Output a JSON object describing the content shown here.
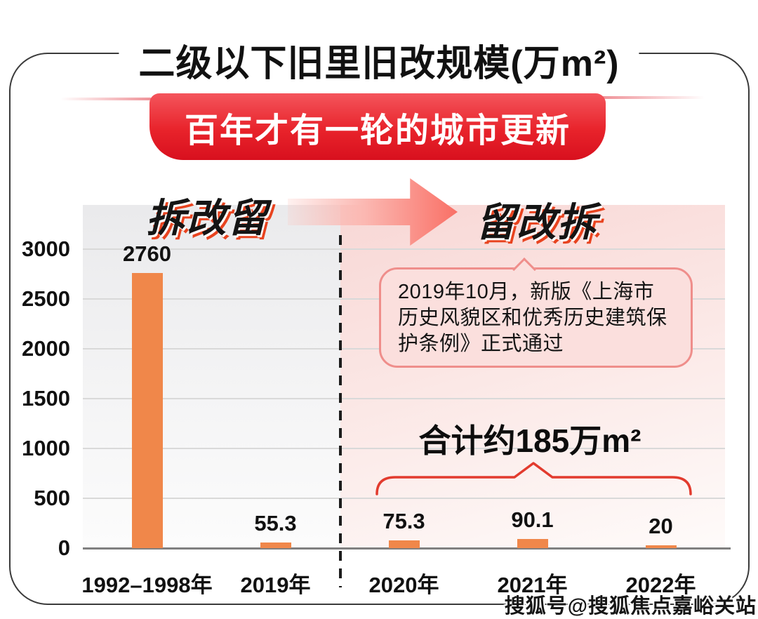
{
  "page": {
    "title": "二级以下旧里旧改规模(万m²)",
    "banner": "百年才有一轮的城市更新",
    "watermark": "搜狐号@搜狐焦点嘉峪关站"
  },
  "eras": {
    "left": "拆改留",
    "right": "留改拆"
  },
  "callout": {
    "text": "2019年10月，新版《上海市历史风貌区和优秀历史建筑保护条例》正式通过"
  },
  "total": {
    "label": "合计约185万m²"
  },
  "chart_data": {
    "type": "bar",
    "title": "二级以下旧里旧改规模(万m²)",
    "categories": [
      "1992–1998年",
      "2019年",
      "2020年",
      "2021年",
      "2022年"
    ],
    "values": [
      2760,
      55.3,
      75.3,
      90.1,
      20
    ],
    "yticks": [
      0,
      500,
      1000,
      1500,
      2000,
      2500,
      3000
    ],
    "ylim": [
      0,
      3450
    ],
    "grid": true,
    "legend": "none",
    "divider_after_category": "2019年",
    "left_phase_label": "拆改留",
    "right_phase_label": "留改拆",
    "right_phase_total_note": "合计约185万m²",
    "annotation": "2019年10月，新版《上海市历史风貌区和优秀历史建筑保护条例》正式通过"
  },
  "colors": {
    "bar": "#F0874A",
    "banner_red": "#E8232B",
    "accent_red": "#E23B2E",
    "era_shadow": "#E8431F",
    "callout_bg": "#FBDFDD",
    "callout_border": "#EF8E8B",
    "gridline": "#D9D9D9",
    "axis": "#808080"
  }
}
